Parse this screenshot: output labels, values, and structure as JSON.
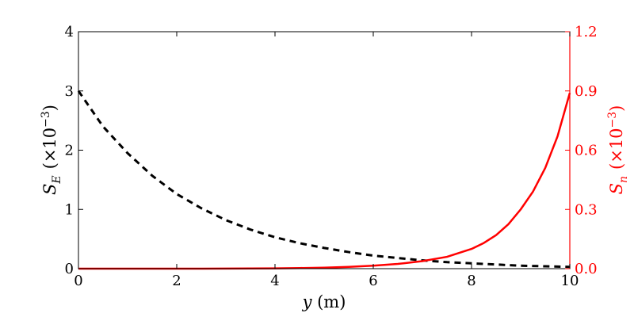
{
  "chart_data": {
    "type": "line",
    "xlabel": {
      "var": "y",
      "unit": " (m)"
    },
    "xlim": [
      0,
      10
    ],
    "x_ticks": [
      0,
      2,
      4,
      6,
      8,
      10
    ],
    "left_axis": {
      "label_symbol": "S",
      "label_subscript": "E",
      "label_scale_prefix": "(×10",
      "label_scale_exp": "−3",
      "label_scale_suffix": ")",
      "ylim": [
        0,
        4
      ],
      "ticks": [
        "0",
        "1",
        "2",
        "3",
        "4"
      ],
      "color": "#000000"
    },
    "right_axis": {
      "label_symbol": "S",
      "label_subscript": "n",
      "label_scale_prefix": "(×10",
      "label_scale_exp": "−3",
      "label_scale_suffix": ")",
      "ylim": [
        0,
        1.2
      ],
      "ticks": [
        "0.0",
        "0.3",
        "0.6",
        "0.9",
        "1.2"
      ],
      "color": "#ff0000"
    },
    "series": [
      {
        "axis": "left",
        "style": "dashed",
        "color": "#000000",
        "x": [
          0,
          0.5,
          1,
          1.5,
          2,
          2.5,
          3,
          3.5,
          4,
          4.5,
          5,
          5.5,
          6,
          6.5,
          7,
          7.5,
          8,
          8.5,
          9,
          9.5,
          10
        ],
        "y": [
          3.0,
          2.4,
          1.95,
          1.57,
          1.26,
          1.02,
          0.82,
          0.66,
          0.53,
          0.43,
          0.35,
          0.28,
          0.22,
          0.18,
          0.14,
          0.11,
          0.09,
          0.07,
          0.05,
          0.04,
          0.03
        ]
      },
      {
        "axis": "right",
        "style": "solid",
        "color": "#ff0000",
        "x": [
          0,
          1,
          2,
          3,
          4,
          4.5,
          5,
          5.5,
          6,
          6.5,
          7,
          7.5,
          8,
          8.25,
          8.5,
          8.75,
          9,
          9.25,
          9.5,
          9.75,
          10
        ],
        "y": [
          0,
          0,
          0,
          0.0005,
          0.0015,
          0.003,
          0.005,
          0.009,
          0.015,
          0.024,
          0.038,
          0.06,
          0.1,
          0.13,
          0.17,
          0.225,
          0.3,
          0.39,
          0.51,
          0.67,
          0.89
        ]
      }
    ]
  }
}
